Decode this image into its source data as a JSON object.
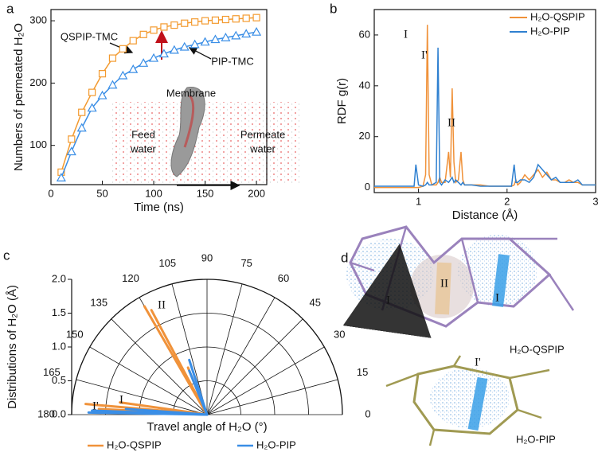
{
  "chart_data": [
    {
      "type": "line",
      "label": "a",
      "xlabel": "Time (ns)",
      "ylabel": "Numbers of permeated H₂O",
      "x": [
        10,
        20,
        30,
        40,
        50,
        60,
        70,
        80,
        90,
        100,
        110,
        120,
        130,
        140,
        150,
        160,
        170,
        180,
        190,
        200
      ],
      "series": [
        {
          "name": "QSPIP-TMC",
          "color": "#f39a2f",
          "marker": "square",
          "values": [
            57,
            110,
            153,
            185,
            215,
            240,
            255,
            268,
            278,
            285,
            290,
            293,
            296,
            298,
            300,
            301,
            302,
            303,
            304,
            305
          ]
        },
        {
          "name": "PIP-TMC",
          "color": "#3a8ee6",
          "marker": "triangle",
          "values": [
            48,
            90,
            128,
            160,
            180,
            197,
            212,
            222,
            232,
            240,
            247,
            253,
            258,
            262,
            266,
            270,
            273,
            276,
            279,
            282
          ]
        }
      ],
      "xlim": [
        0,
        210
      ],
      "ylim": [
        37,
        318
      ],
      "xticks": [
        0,
        50,
        100,
        150,
        200
      ],
      "yticks": [
        100,
        200,
        300
      ],
      "annotations": [
        "Membrane",
        "Feed",
        "water",
        "Permeate",
        "water"
      ]
    },
    {
      "type": "line",
      "label": "b",
      "xlabel": "Distance (Å)",
      "ylabel": "RDF g(r)",
      "x": [
        0.5,
        0.9,
        0.95,
        0.97,
        1.0,
        1.05,
        1.08,
        1.1,
        1.12,
        1.15,
        1.2,
        1.22,
        1.24,
        1.26,
        1.3,
        1.34,
        1.36,
        1.38,
        1.4,
        1.42,
        1.45,
        1.48,
        1.5,
        1.52,
        1.55,
        1.6,
        1.7,
        1.8,
        1.9,
        2.0,
        2.05,
        2.08,
        2.1,
        2.12,
        2.15,
        2.2,
        2.25,
        2.3,
        2.35,
        2.4,
        2.45,
        2.5,
        2.55,
        2.6,
        2.65,
        2.7,
        2.75,
        2.8,
        2.85,
        2.9,
        3.0
      ],
      "series": [
        {
          "name": "H₂O-QSPIP",
          "color": "#f0923a",
          "values": [
            0,
            0,
            0,
            0,
            0,
            0.5,
            5,
            64,
            5,
            1,
            1,
            2,
            4,
            2,
            2,
            14,
            4,
            39,
            10,
            2,
            3,
            14,
            3,
            1,
            1,
            1,
            1,
            0.5,
            0.5,
            0.5,
            0.5,
            1,
            3,
            1,
            2,
            5,
            3,
            5,
            7,
            4,
            6,
            3,
            3,
            2,
            2,
            3,
            2,
            2,
            1,
            1,
            1
          ]
        },
        {
          "name": "H₂O-PIP",
          "color": "#2f80d0",
          "values": [
            0.5,
            0.5,
            0.5,
            9,
            1,
            0.5,
            1,
            2,
            1,
            1,
            2,
            55,
            2,
            1,
            3,
            2,
            3,
            4,
            2,
            3,
            2,
            1,
            2,
            1,
            1,
            1,
            0.5,
            0.5,
            0.5,
            0.5,
            0.5,
            9,
            2,
            2,
            3,
            3,
            2,
            4,
            9,
            7,
            5,
            3,
            4,
            2,
            2,
            2,
            2,
            3,
            1,
            1,
            1
          ]
        }
      ],
      "xlim": [
        0.5,
        3
      ],
      "ylim": [
        -2,
        70
      ],
      "xticks": [
        1,
        2,
        3
      ],
      "yticks": [
        0,
        20,
        40,
        60
      ],
      "legend": "upper right",
      "annotations": [
        "I",
        "I'",
        "II"
      ]
    },
    {
      "type": "polar",
      "label": "c",
      "xlabel": "Travel angle of H₂O (°)",
      "ylabel": "Distributions of  H₂O (Å)",
      "series": [
        {
          "name": "H₂O-QSPIP",
          "color": "#f0923a",
          "x": [
            118,
            120,
            112,
            172,
            175,
            177
          ],
          "values": [
            1.75,
            1.85,
            0.75,
            1.3,
            1.8,
            1.6
          ]
        },
        {
          "name": "H₂O-PIP",
          "color": "#3a8ee6",
          "x": [
            108,
            112,
            176,
            178,
            179
          ],
          "values": [
            0.85,
            0.7,
            1.2,
            1.7,
            1.75
          ]
        }
      ],
      "xlim": [
        0,
        180
      ],
      "ylim": [
        0,
        2
      ],
      "xticks": [
        0,
        15,
        30,
        45,
        60,
        75,
        90,
        105,
        120,
        135,
        150,
        165,
        180
      ],
      "yticks": [
        {
          "value": 0,
          "label": "0.0"
        },
        0.5,
        {
          "value": 1,
          "label": "1.0"
        },
        1.5,
        {
          "value": 2,
          "label": "2.0"
        }
      ],
      "legend": "bottom",
      "annotations": [
        "II",
        "I",
        "I'"
      ]
    }
  ],
  "panel_d": {
    "label": "d",
    "labels": [
      "I",
      "II",
      "I",
      "H₂O-QSPIP",
      "I'",
      "H₂O-PIP"
    ]
  }
}
